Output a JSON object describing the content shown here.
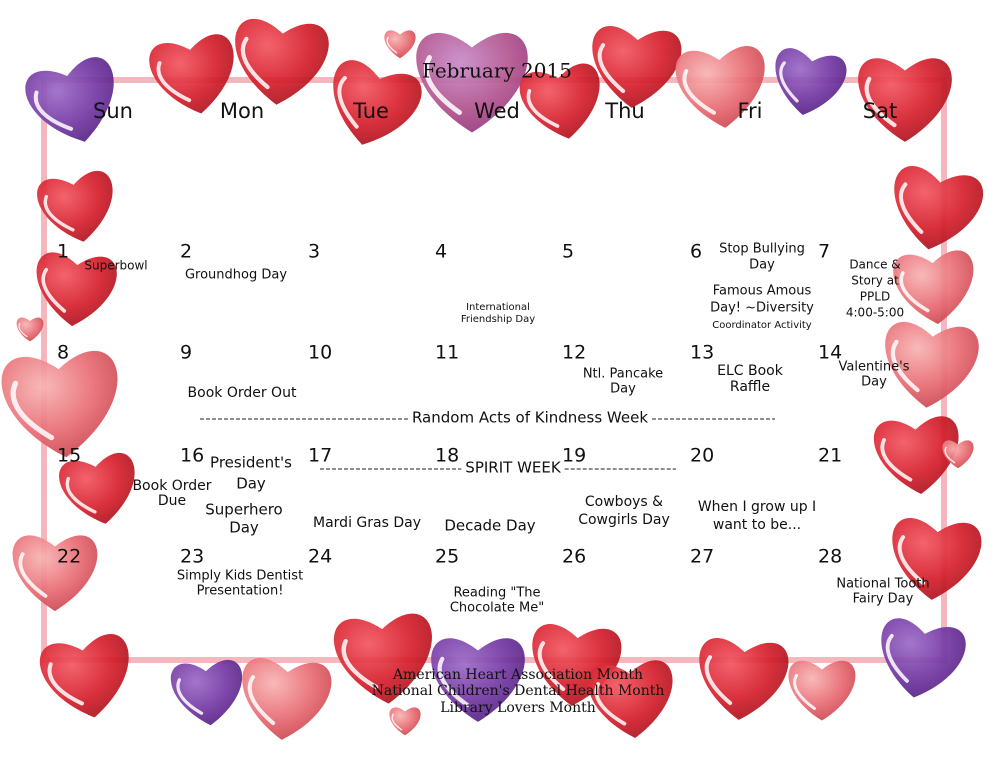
{
  "title": "February 2015",
  "weekdays": [
    "Sun",
    "Mon",
    "Tue",
    "Wed",
    "Thu",
    "Fri",
    "Sat"
  ],
  "days": [
    {
      "date": "1",
      "events": [
        [
          "Superbowl"
        ]
      ]
    },
    {
      "date": "2",
      "events": [
        [
          "Groundhog Day"
        ]
      ]
    },
    {
      "date": "3",
      "events": []
    },
    {
      "date": "4",
      "events": [
        [
          "International",
          "Friendship Day"
        ]
      ]
    },
    {
      "date": "5",
      "events": []
    },
    {
      "date": "6",
      "events": [
        [
          "Stop Bullying",
          "Day"
        ],
        [
          "Famous Amous",
          "Day! ~Diversity",
          "Coordinator Activity"
        ]
      ]
    },
    {
      "date": "7",
      "events": [
        [
          "Dance &",
          "Story at",
          "PPLD",
          "4:00-5:00"
        ]
      ]
    },
    {
      "date": "8",
      "events": []
    },
    {
      "date": "9",
      "events": [
        [
          "Book Order Out"
        ]
      ]
    },
    {
      "date": "10",
      "events": []
    },
    {
      "date": "11",
      "events": []
    },
    {
      "date": "12",
      "events": [
        [
          "Ntl. Pancake",
          "Day"
        ]
      ]
    },
    {
      "date": "13",
      "events": [
        [
          "ELC Book",
          "Raffle"
        ]
      ]
    },
    {
      "date": "14",
      "events": [
        [
          "Valentine's",
          "Day"
        ]
      ]
    },
    {
      "date": "15",
      "events": []
    },
    {
      "date": "16",
      "events": [
        [
          "Book Order",
          "Due"
        ],
        [
          "President's",
          "Day"
        ],
        [
          "Superhero",
          "Day"
        ]
      ]
    },
    {
      "date": "17",
      "events": [
        [
          "Mardi Gras Day"
        ]
      ]
    },
    {
      "date": "18",
      "events": [
        [
          "Decade Day"
        ]
      ]
    },
    {
      "date": "19",
      "events": [
        [
          "Cowboys &",
          "Cowgirls Day"
        ]
      ]
    },
    {
      "date": "20",
      "events": [
        [
          "When I grow up I",
          "want to be..."
        ]
      ]
    },
    {
      "date": "21",
      "events": []
    },
    {
      "date": "22",
      "events": []
    },
    {
      "date": "23",
      "events": [
        [
          "Simply Kids Dentist",
          "Presentation!"
        ]
      ]
    },
    {
      "date": "24",
      "events": []
    },
    {
      "date": "25",
      "events": [
        [
          "Reading \"The",
          "Chocolate Me\""
        ]
      ]
    },
    {
      "date": "26",
      "events": []
    },
    {
      "date": "27",
      "events": []
    },
    {
      "date": "28",
      "events": [
        [
          "National Tooth",
          "Fairy Day"
        ]
      ]
    }
  ],
  "banners": [
    "Random Acts of Kindness Week",
    "SPIRIT WEEK"
  ],
  "footer": [
    "American Heart Association Month",
    "National Children's Dental Health Month",
    "Library Lovers Month"
  ]
}
